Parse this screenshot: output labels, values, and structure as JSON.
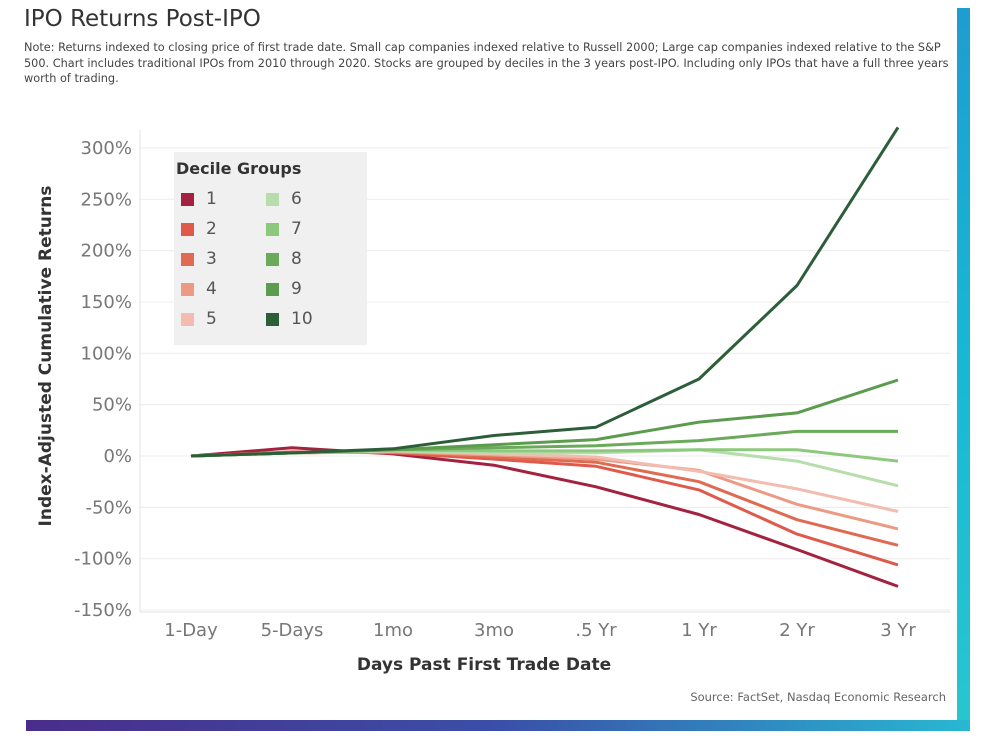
{
  "title": "IPO Returns Post-IPO",
  "note": "Note: Returns indexed to closing price of first trade date. Small cap companies indexed relative to Russell 2000; Large cap companies indexed relative to the S&P 500. Chart includes traditional IPOs from 2010 through 2020. Stocks are grouped by deciles in the 3 years post-IPO. Including only IPOs that have a full three years worth of trading.",
  "source": "Source: FactSet, Nasdaq Economic Research",
  "chart_data": {
    "type": "line",
    "xlabel": "Days Past First Trade Date",
    "ylabel": "Index-Adjusted Cumulative Returns",
    "categories": [
      "1-Day",
      "5-Days",
      "1mo",
      "3mo",
      ".5 Yr",
      "1 Yr",
      "2 Yr",
      "3 Yr"
    ],
    "ylim": [
      -150,
      300
    ],
    "yticks": [
      300,
      250,
      200,
      150,
      100,
      50,
      0,
      -50,
      -100,
      -150
    ],
    "ytick_labels": [
      "300%",
      "250%",
      "200%",
      "150%",
      "100%",
      "50%",
      "0%",
      "-50%",
      "-100%",
      "-150%"
    ],
    "grid": true,
    "legend": {
      "title": "Decile Groups",
      "placement": "top-left"
    },
    "series": [
      {
        "name": "1",
        "color": "#a3223f",
        "values": [
          0,
          8,
          2,
          -9,
          -30,
          -57,
          -91,
          -127
        ]
      },
      {
        "name": "2",
        "color": "#de5a4b",
        "values": [
          0,
          4,
          3,
          -3,
          -10,
          -33,
          -76,
          -106
        ]
      },
      {
        "name": "3",
        "color": "#e06a52",
        "values": [
          0,
          3,
          4,
          -1,
          -6,
          -25,
          -62,
          -87
        ]
      },
      {
        "name": "4",
        "color": "#ec9a83",
        "values": [
          0,
          3,
          4,
          1,
          -3,
          -14,
          -47,
          -71
        ]
      },
      {
        "name": "5",
        "color": "#f3bcb0",
        "values": [
          0,
          3,
          5,
          2,
          -1,
          -15,
          -32,
          -54
        ]
      },
      {
        "name": "6",
        "color": "#b6ddab",
        "values": [
          0,
          3,
          5,
          3,
          3,
          6,
          -5,
          -29
        ]
      },
      {
        "name": "7",
        "color": "#8cc97c",
        "values": [
          0,
          3,
          6,
          5,
          5,
          6,
          6,
          -5
        ]
      },
      {
        "name": "8",
        "color": "#6aaa5a",
        "values": [
          0,
          3,
          6,
          8,
          10,
          15,
          24,
          24
        ]
      },
      {
        "name": "9",
        "color": "#5c9c4e",
        "values": [
          0,
          3,
          6,
          11,
          16,
          33,
          42,
          74
        ]
      },
      {
        "name": "10",
        "color": "#2d5e3a",
        "values": [
          0,
          3,
          7,
          20,
          28,
          75,
          166,
          320
        ]
      }
    ]
  }
}
